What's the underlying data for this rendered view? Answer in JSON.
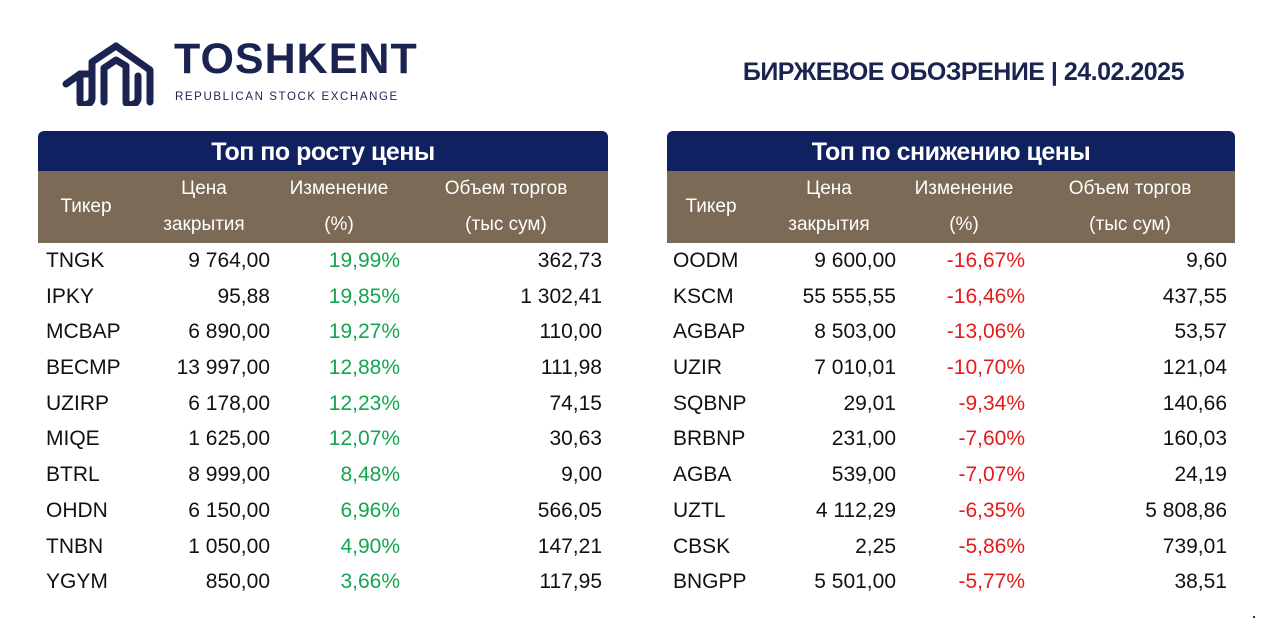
{
  "header": {
    "logo_name": "TOSHKENT",
    "logo_subtitle": "REPUBLICAN STOCK EXCHANGE",
    "report_title": "БИРЖЕВОЕ ОБОЗРЕНИЕ | 24.02.2025"
  },
  "colors": {
    "navy": "#0f2160",
    "header_brown": "#7b6a55",
    "positive": "#14a550",
    "negative": "#e41b1b"
  },
  "columns": {
    "ticker": "Тикер",
    "price_line1": "Цена",
    "price_line2": "закрытия",
    "change_line1": "Изменение",
    "change_line2": "(%)",
    "volume_line1": "Объем торгов",
    "volume_line2": "(тыс сум)"
  },
  "gainers": {
    "title": "Топ по росту цены",
    "rows": [
      {
        "ticker": "TNGK",
        "price": "9 764,00",
        "change": "19,99%",
        "volume": "362,73"
      },
      {
        "ticker": "IPKY",
        "price": "95,88",
        "change": "19,85%",
        "volume": "1 302,41"
      },
      {
        "ticker": "MCBAP",
        "price": "6 890,00",
        "change": "19,27%",
        "volume": "110,00"
      },
      {
        "ticker": "BECMP",
        "price": "13 997,00",
        "change": "12,88%",
        "volume": "111,98"
      },
      {
        "ticker": "UZIRP",
        "price": "6 178,00",
        "change": "12,23%",
        "volume": "74,15"
      },
      {
        "ticker": "MIQE",
        "price": "1 625,00",
        "change": "12,07%",
        "volume": "30,63"
      },
      {
        "ticker": "BTRL",
        "price": "8 999,00",
        "change": "8,48%",
        "volume": "9,00"
      },
      {
        "ticker": "OHDN",
        "price": "6 150,00",
        "change": "6,96%",
        "volume": "566,05"
      },
      {
        "ticker": "TNBN",
        "price": "1 050,00",
        "change": "4,90%",
        "volume": "147,21"
      },
      {
        "ticker": "YGYM",
        "price": "850,00",
        "change": "3,66%",
        "volume": "117,95"
      }
    ]
  },
  "losers": {
    "title": "Топ по снижению цены",
    "rows": [
      {
        "ticker": "OODM",
        "price": "9 600,00",
        "change": "-16,67%",
        "volume": "9,60"
      },
      {
        "ticker": "KSCM",
        "price": "55 555,55",
        "change": "-16,46%",
        "volume": "437,55"
      },
      {
        "ticker": "AGBAP",
        "price": "8 503,00",
        "change": "-13,06%",
        "volume": "53,57"
      },
      {
        "ticker": "UZIR",
        "price": "7 010,01",
        "change": "-10,70%",
        "volume": "121,04"
      },
      {
        "ticker": "SQBNP",
        "price": "29,01",
        "change": "-9,34%",
        "volume": "140,66"
      },
      {
        "ticker": "BRBNP",
        "price": "231,00",
        "change": "-7,60%",
        "volume": "160,03"
      },
      {
        "ticker": "AGBA",
        "price": "539,00",
        "change": "-7,07%",
        "volume": "24,19"
      },
      {
        "ticker": "UZTL",
        "price": "4 112,29",
        "change": "-6,35%",
        "volume": "5 808,86"
      },
      {
        "ticker": "CBSK",
        "price": "2,25",
        "change": "-5,86%",
        "volume": "739,01"
      },
      {
        "ticker": "BNGPP",
        "price": "5 501,00",
        "change": "-5,77%",
        "volume": "38,51"
      }
    ]
  }
}
